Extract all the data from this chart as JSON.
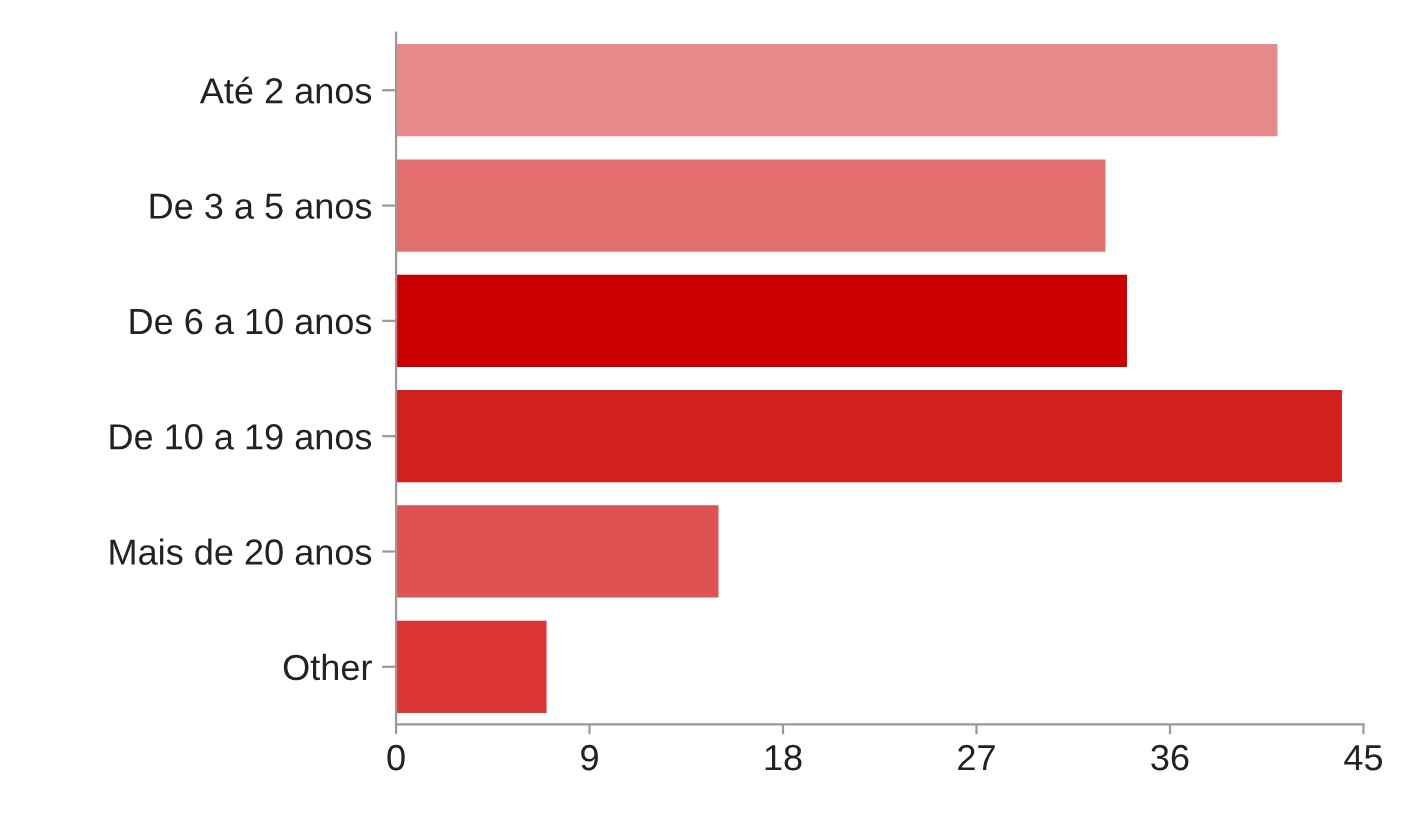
{
  "chart_data": {
    "type": "bar",
    "orientation": "horizontal",
    "categories": [
      "Até 2 anos",
      "De 3 a 5 anos",
      "De 6 a 10 anos",
      "De 10 a 19 anos",
      "Mais de 20 anos",
      "Other"
    ],
    "values": [
      41,
      33,
      34,
      44,
      15,
      7
    ],
    "colors": [
      "#e88a8a",
      "#e36f6f",
      "#cc0000",
      "#d41f1f",
      "#df5252",
      "#dc3535"
    ],
    "xlim": [
      0,
      45
    ],
    "xticks": [
      0,
      9,
      18,
      27,
      36,
      45
    ],
    "grid": false,
    "legend": false
  }
}
